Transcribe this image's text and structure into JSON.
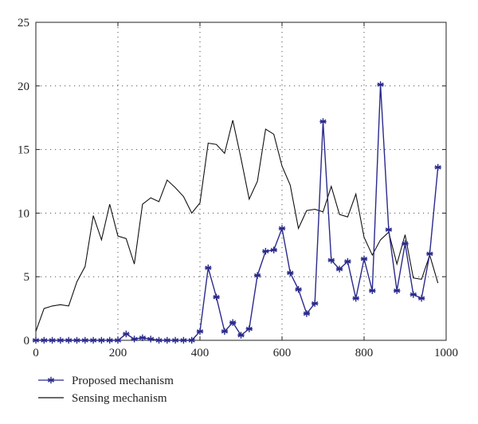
{
  "chart_data": {
    "type": "line",
    "title": "",
    "xlabel": "",
    "ylabel": "",
    "xlim": [
      0,
      1000
    ],
    "ylim": [
      0,
      25
    ],
    "x_ticks": [
      0,
      200,
      400,
      600,
      800,
      1000
    ],
    "y_ticks": [
      0,
      5,
      10,
      15,
      20,
      25
    ],
    "grid": "dotted",
    "legend_position": "bottom-left",
    "series": [
      {
        "name": "Proposed mechanism",
        "color": "#2a2a8c",
        "marker": "asterisk",
        "x": [
          0,
          20,
          40,
          60,
          80,
          100,
          120,
          140,
          160,
          180,
          200,
          220,
          240,
          260,
          280,
          300,
          320,
          340,
          360,
          380,
          400,
          420,
          440,
          460,
          480,
          500,
          520,
          540,
          560,
          580,
          600,
          620,
          640,
          660,
          680,
          700,
          720,
          740,
          760,
          780,
          800,
          820,
          840,
          860,
          880,
          900,
          920,
          940,
          960,
          980
        ],
        "y": [
          0,
          0,
          0,
          0,
          0,
          0,
          0,
          0,
          0,
          0,
          0,
          0.5,
          0.1,
          0.2,
          0.1,
          0,
          0,
          0,
          0,
          0,
          0.7,
          5.7,
          3.4,
          0.7,
          1.4,
          0.4,
          0.9,
          5.1,
          7.0,
          7.1,
          8.8,
          5.3,
          4.0,
          2.1,
          2.9,
          17.2,
          6.3,
          5.6,
          6.2,
          3.3,
          6.4,
          3.9,
          20.1,
          8.7,
          3.9,
          7.6,
          3.6,
          3.3,
          6.8,
          13.6
        ]
      },
      {
        "name": "Sensing mechanism",
        "color": "#111111",
        "marker": "none",
        "x": [
          0,
          20,
          40,
          60,
          80,
          100,
          120,
          140,
          160,
          180,
          200,
          220,
          240,
          260,
          280,
          300,
          320,
          340,
          360,
          380,
          400,
          420,
          440,
          460,
          480,
          500,
          520,
          540,
          560,
          580,
          600,
          620,
          640,
          660,
          680,
          700,
          720,
          740,
          760,
          780,
          800,
          820,
          840,
          860,
          880,
          900,
          920,
          940,
          960,
          980
        ],
        "y": [
          0.7,
          2.5,
          2.7,
          2.8,
          2.7,
          4.6,
          5.8,
          9.8,
          7.9,
          10.7,
          8.2,
          8.0,
          6.0,
          10.7,
          11.2,
          10.9,
          12.6,
          12.0,
          11.3,
          10.0,
          10.8,
          15.5,
          15.4,
          14.7,
          17.3,
          14.3,
          11.1,
          12.5,
          16.6,
          16.2,
          13.7,
          12.2,
          8.8,
          10.2,
          10.3,
          10.1,
          12.1,
          9.9,
          9.7,
          11.5,
          8.1,
          6.7,
          7.9,
          8.5,
          6.0,
          8.3,
          4.9,
          4.8,
          6.7,
          4.5
        ]
      }
    ]
  }
}
